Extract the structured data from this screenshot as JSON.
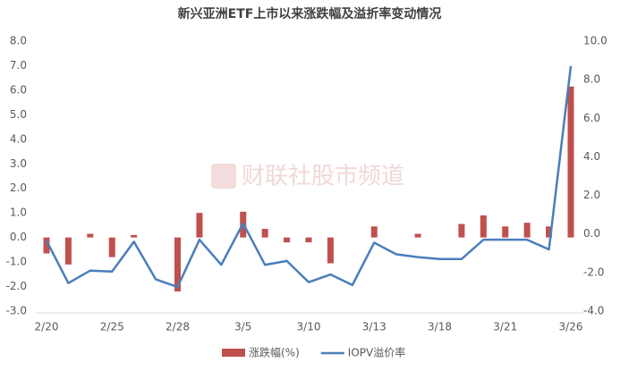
{
  "chart_data": {
    "type": "bar-line",
    "title": "新兴亚洲ETF上市以来涨跌幅及溢折率变动情况",
    "watermark": "财联社股市频道",
    "categories": [
      "2/20",
      null,
      null,
      "2/25",
      null,
      null,
      "2/28",
      null,
      null,
      "3/5",
      null,
      null,
      "3/10",
      null,
      null,
      "3/13",
      null,
      null,
      "3/18",
      null,
      null,
      "3/21",
      null,
      null,
      "3/26"
    ],
    "series": [
      {
        "name": "涨跌幅(%)",
        "color": "#c0504d",
        "type": "bar",
        "values": [
          -0.65,
          -1.1,
          0.15,
          -0.8,
          0.1,
          0,
          -2.2,
          1.0,
          0,
          1.05,
          0.35,
          -0.2,
          -0.2,
          -1.05,
          0,
          0.45,
          0,
          0.15,
          0,
          0.55,
          0.9,
          0.45,
          0.6,
          0.45,
          6.15
        ]
      },
      {
        "name": "IOPV溢价率",
        "color": "#4a7ebb",
        "type": "line",
        "axis": "y2",
        "values": [
          -0.35,
          -2.55,
          -1.9,
          -1.95,
          -0.4,
          -2.35,
          -2.75,
          -0.3,
          -1.6,
          0.55,
          -1.6,
          -1.4,
          -2.5,
          -2.1,
          -2.65,
          -0.45,
          -1.05,
          -1.2,
          -1.3,
          -1.3,
          -0.3,
          -0.3,
          -0.3,
          -0.8,
          8.7
        ]
      }
    ],
    "ylim": [
      -3,
      8
    ],
    "yticks": [
      {
        "value": -3,
        "label": "-3.0"
      },
      {
        "value": -2,
        "label": "-2.0"
      },
      {
        "value": -1,
        "label": "-1.0"
      },
      {
        "value": 0,
        "label": "0.0"
      },
      {
        "value": 1,
        "label": "1.0"
      },
      {
        "value": 2,
        "label": "2.0"
      },
      {
        "value": 3,
        "label": "3.0"
      },
      {
        "value": 4,
        "label": "4.0"
      },
      {
        "value": 5,
        "label": "5.0"
      },
      {
        "value": 6,
        "label": "6.0"
      },
      {
        "value": 7,
        "label": "7.0"
      },
      {
        "value": 8,
        "label": "8.0"
      }
    ],
    "y2lim": [
      -4,
      10
    ],
    "y2ticks": [
      {
        "value": -4,
        "label": "-4.0"
      },
      {
        "value": -2,
        "label": "-2.0"
      },
      {
        "value": 0,
        "label": "0.0"
      },
      {
        "value": 2,
        "label": "2.0"
      },
      {
        "value": 4,
        "label": "4.0"
      },
      {
        "value": 6,
        "label": "6.0"
      },
      {
        "value": 8,
        "label": "8.0"
      },
      {
        "value": 10,
        "label": "10.0"
      }
    ],
    "legend": "bottom"
  }
}
